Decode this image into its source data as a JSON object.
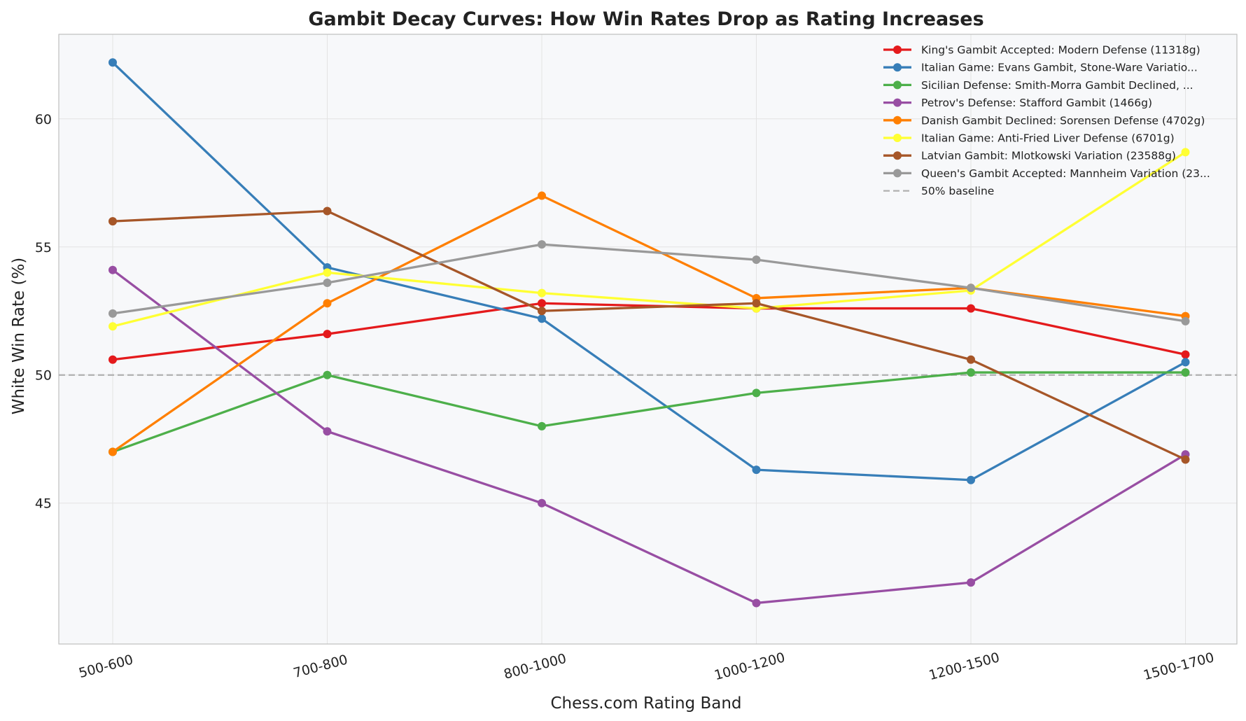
{
  "chart_data": {
    "type": "line",
    "title": "Gambit Decay Curves: How Win Rates Drop as Rating Increases",
    "xlabel": "Chess.com Rating Band",
    "ylabel": "White Win Rate (%)",
    "categories": [
      "500-600",
      "700-800",
      "800-1000",
      "1000-1200",
      "1200-1500",
      "1500-1700"
    ],
    "ylim": [
      39.5,
      63.3
    ],
    "yticks": [
      45,
      50,
      55,
      60
    ],
    "grid": true,
    "legend_position": "top-right",
    "series": [
      {
        "name": "King's Gambit Accepted: Modern Defense (11318g)",
        "color": "#e41a1c",
        "values": [
          50.6,
          51.6,
          52.8,
          52.6,
          52.6,
          50.8
        ]
      },
      {
        "name": "Italian Game: Evans Gambit, Stone-Ware Variatio...",
        "color": "#377eb8",
        "values": [
          62.2,
          54.2,
          52.2,
          46.3,
          45.9,
          50.5
        ]
      },
      {
        "name": "Sicilian Defense: Smith-Morra Gambit Declined, ...",
        "color": "#4daf4a",
        "values": [
          47.0,
          50.0,
          48.0,
          49.3,
          50.1,
          50.1
        ]
      },
      {
        "name": "Petrov's Defense: Stafford Gambit (1466g)",
        "color": "#984ea3",
        "values": [
          54.1,
          47.8,
          45.0,
          41.1,
          41.9,
          46.9
        ]
      },
      {
        "name": "Danish Gambit Declined: Sorensen Defense (4702g)",
        "color": "#ff7f00",
        "values": [
          47.0,
          52.8,
          57.0,
          53.0,
          53.4,
          52.3
        ]
      },
      {
        "name": "Italian Game: Anti-Fried Liver Defense (6701g)",
        "color": "#ffff33",
        "values": [
          51.9,
          54.0,
          53.2,
          52.6,
          53.3,
          58.7
        ]
      },
      {
        "name": "Latvian Gambit: Mlotkowski Variation (23588g)",
        "color": "#a65628",
        "values": [
          56.0,
          56.4,
          52.5,
          52.8,
          50.6,
          46.7
        ]
      },
      {
        "name": "Queen's Gambit Accepted: Mannheim Variation (23...",
        "color": "#999999",
        "values": [
          52.4,
          53.6,
          55.1,
          54.5,
          53.4,
          52.1
        ]
      }
    ],
    "baseline": {
      "name": "50% baseline",
      "value": 50,
      "color": "#b0b0b0"
    }
  }
}
